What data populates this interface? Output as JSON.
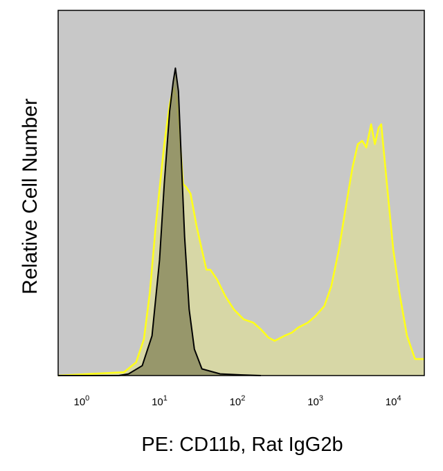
{
  "chart_data": {
    "type": "area",
    "title": "",
    "xlabel": "PE: CD11b, Rat IgG2b",
    "ylabel": "Relative Cell Number",
    "x_scale": "log",
    "xlim": [
      0.5,
      25000
    ],
    "ylim": [
      0,
      1
    ],
    "grid": false,
    "legend": "none",
    "x_ticks": [
      {
        "value": 1,
        "base": "10",
        "exp": "0"
      },
      {
        "value": 10,
        "base": "10",
        "exp": "1"
      },
      {
        "value": 100,
        "base": "10",
        "exp": "2"
      },
      {
        "value": 1000,
        "base": "10",
        "exp": "3"
      },
      {
        "value": 10000,
        "base": "10",
        "exp": "4"
      }
    ],
    "series": [
      {
        "style": "stained",
        "color": "#ffff1a",
        "fill": "#d8d8a4",
        "points": [
          [
            0.5,
            0
          ],
          [
            3.5,
            0.01
          ],
          [
            5,
            0.04
          ],
          [
            6.3,
            0.11
          ],
          [
            7.5,
            0.25
          ],
          [
            9,
            0.46
          ],
          [
            11.5,
            0.7
          ],
          [
            13.5,
            0.82
          ],
          [
            15,
            0.87
          ],
          [
            16.5,
            0.84
          ],
          [
            18,
            0.74
          ],
          [
            20,
            0.58
          ],
          [
            22,
            0.57
          ],
          [
            25,
            0.55
          ],
          [
            30,
            0.45
          ],
          [
            35,
            0.38
          ],
          [
            40,
            0.32
          ],
          [
            45,
            0.32
          ],
          [
            55,
            0.29
          ],
          [
            70,
            0.24
          ],
          [
            90,
            0.2
          ],
          [
            120,
            0.17
          ],
          [
            160,
            0.16
          ],
          [
            200,
            0.14
          ],
          [
            250,
            0.115
          ],
          [
            300,
            0.105
          ],
          [
            400,
            0.12
          ],
          [
            500,
            0.13
          ],
          [
            600,
            0.145
          ],
          [
            800,
            0.16
          ],
          [
            1000,
            0.18
          ],
          [
            1300,
            0.21
          ],
          [
            1600,
            0.27
          ],
          [
            2000,
            0.38
          ],
          [
            2500,
            0.52
          ],
          [
            3000,
            0.63
          ],
          [
            3500,
            0.7
          ],
          [
            4000,
            0.71
          ],
          [
            4500,
            0.69
          ],
          [
            5200,
            0.76
          ],
          [
            5800,
            0.7
          ],
          [
            6500,
            0.75
          ],
          [
            7000,
            0.76
          ],
          [
            8500,
            0.55
          ],
          [
            10000,
            0.38
          ],
          [
            12000,
            0.25
          ],
          [
            15000,
            0.12
          ],
          [
            19000,
            0.05
          ],
          [
            25000,
            0.05
          ]
        ]
      },
      {
        "style": "isotype",
        "color": "#000000",
        "fill": "#8c8c60",
        "points": [
          [
            0.5,
            0
          ],
          [
            3,
            0
          ],
          [
            4,
            0.005
          ],
          [
            6,
            0.03
          ],
          [
            8,
            0.12
          ],
          [
            10,
            0.35
          ],
          [
            11.5,
            0.58
          ],
          [
            13.5,
            0.8
          ],
          [
            15,
            0.89
          ],
          [
            16,
            0.93
          ],
          [
            17.5,
            0.86
          ],
          [
            19,
            0.66
          ],
          [
            21,
            0.42
          ],
          [
            24,
            0.2
          ],
          [
            28,
            0.08
          ],
          [
            35,
            0.02
          ],
          [
            60,
            0.005
          ],
          [
            110,
            0.002
          ],
          [
            200,
            0
          ]
        ]
      }
    ]
  }
}
